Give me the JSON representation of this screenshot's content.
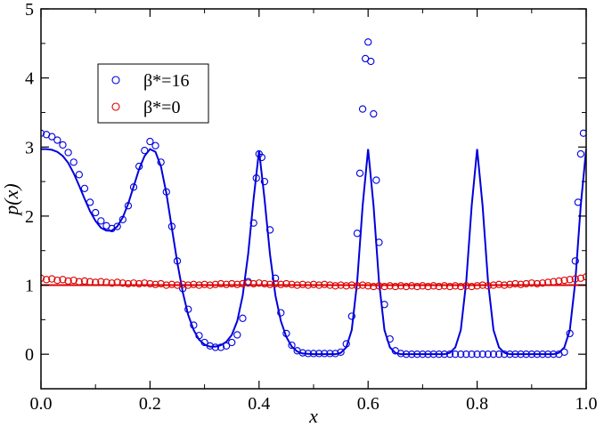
{
  "chart_data": {
    "type": "scatter",
    "xlabel": "x",
    "ylabel": "p(x)",
    "xlim": [
      0.0,
      1.0
    ],
    "ylim": [
      -0.5,
      5.0
    ],
    "x_ticks": [
      "0.0",
      "0.2",
      "0.4",
      "0.6",
      "0.8",
      "1.0"
    ],
    "y_ticks": [
      "0",
      "1",
      "2",
      "3",
      "4",
      "5"
    ],
    "legend_position": "upper-left",
    "series": [
      {
        "name": "β*=16",
        "kind": "markers",
        "marker": "open-circle",
        "color": "#0000dd",
        "points": [
          [
            0.0,
            3.2
          ],
          [
            0.01,
            3.18
          ],
          [
            0.02,
            3.15
          ],
          [
            0.03,
            3.1
          ],
          [
            0.04,
            3.03
          ],
          [
            0.05,
            2.92
          ],
          [
            0.06,
            2.78
          ],
          [
            0.07,
            2.6
          ],
          [
            0.08,
            2.4
          ],
          [
            0.09,
            2.2
          ],
          [
            0.1,
            2.05
          ],
          [
            0.11,
            1.93
          ],
          [
            0.12,
            1.86
          ],
          [
            0.13,
            1.82
          ],
          [
            0.14,
            1.85
          ],
          [
            0.15,
            1.95
          ],
          [
            0.16,
            2.15
          ],
          [
            0.17,
            2.42
          ],
          [
            0.18,
            2.72
          ],
          [
            0.19,
            2.95
          ],
          [
            0.2,
            3.08
          ],
          [
            0.21,
            3.02
          ],
          [
            0.22,
            2.78
          ],
          [
            0.23,
            2.35
          ],
          [
            0.24,
            1.85
          ],
          [
            0.25,
            1.35
          ],
          [
            0.26,
            0.95
          ],
          [
            0.27,
            0.65
          ],
          [
            0.28,
            0.42
          ],
          [
            0.29,
            0.27
          ],
          [
            0.3,
            0.17
          ],
          [
            0.31,
            0.12
          ],
          [
            0.32,
            0.1
          ],
          [
            0.33,
            0.1
          ],
          [
            0.34,
            0.12
          ],
          [
            0.35,
            0.17
          ],
          [
            0.36,
            0.28
          ],
          [
            0.37,
            0.52
          ],
          [
            0.38,
            1.05
          ],
          [
            0.39,
            1.9
          ],
          [
            0.395,
            2.55
          ],
          [
            0.4,
            2.9
          ],
          [
            0.405,
            2.85
          ],
          [
            0.41,
            2.5
          ],
          [
            0.42,
            1.8
          ],
          [
            0.43,
            1.1
          ],
          [
            0.44,
            0.6
          ],
          [
            0.45,
            0.3
          ],
          [
            0.46,
            0.13
          ],
          [
            0.47,
            0.05
          ],
          [
            0.48,
            0.02
          ],
          [
            0.49,
            0.01
          ],
          [
            0.5,
            0.01
          ],
          [
            0.51,
            0.01
          ],
          [
            0.52,
            0.01
          ],
          [
            0.53,
            0.01
          ],
          [
            0.54,
            0.01
          ],
          [
            0.55,
            0.03
          ],
          [
            0.56,
            0.15
          ],
          [
            0.57,
            0.55
          ],
          [
            0.58,
            1.75
          ],
          [
            0.585,
            2.62
          ],
          [
            0.59,
            3.55
          ],
          [
            0.595,
            4.28
          ],
          [
            0.6,
            4.52
          ],
          [
            0.605,
            4.24
          ],
          [
            0.61,
            3.48
          ],
          [
            0.615,
            2.52
          ],
          [
            0.62,
            1.62
          ],
          [
            0.63,
            0.72
          ],
          [
            0.64,
            0.22
          ],
          [
            0.65,
            0.05
          ],
          [
            0.66,
            0.01
          ],
          [
            0.67,
            0.0
          ],
          [
            0.68,
            0.0
          ],
          [
            0.69,
            0.0
          ],
          [
            0.7,
            0.0
          ],
          [
            0.71,
            0.0
          ],
          [
            0.72,
            0.0
          ],
          [
            0.73,
            0.0
          ],
          [
            0.74,
            0.0
          ],
          [
            0.75,
            0.0
          ],
          [
            0.76,
            0.0
          ],
          [
            0.77,
            0.0
          ],
          [
            0.78,
            0.0
          ],
          [
            0.79,
            0.0
          ],
          [
            0.8,
            0.0
          ],
          [
            0.81,
            0.0
          ],
          [
            0.82,
            0.0
          ],
          [
            0.83,
            0.0
          ],
          [
            0.84,
            0.0
          ],
          [
            0.85,
            0.0
          ],
          [
            0.86,
            0.0
          ],
          [
            0.87,
            0.0
          ],
          [
            0.88,
            0.0
          ],
          [
            0.89,
            0.0
          ],
          [
            0.9,
            0.0
          ],
          [
            0.91,
            0.0
          ],
          [
            0.92,
            0.0
          ],
          [
            0.93,
            0.0
          ],
          [
            0.94,
            0.0
          ],
          [
            0.95,
            0.0
          ],
          [
            0.96,
            0.03
          ],
          [
            0.97,
            0.3
          ],
          [
            0.98,
            1.35
          ],
          [
            0.985,
            2.2
          ],
          [
            0.99,
            2.9
          ],
          [
            0.995,
            3.2
          ]
        ]
      },
      {
        "name": "β*=0",
        "kind": "markers",
        "marker": "open-circle",
        "color": "#dd0000",
        "points": [
          [
            0.0,
            1.1
          ],
          [
            0.01,
            1.08
          ],
          [
            0.02,
            1.09
          ],
          [
            0.03,
            1.07
          ],
          [
            0.04,
            1.08
          ],
          [
            0.05,
            1.06
          ],
          [
            0.06,
            1.07
          ],
          [
            0.07,
            1.05
          ],
          [
            0.08,
            1.06
          ],
          [
            0.09,
            1.05
          ],
          [
            0.1,
            1.04
          ],
          [
            0.11,
            1.05
          ],
          [
            0.12,
            1.04
          ],
          [
            0.13,
            1.03
          ],
          [
            0.14,
            1.04
          ],
          [
            0.15,
            1.03
          ],
          [
            0.16,
            1.02
          ],
          [
            0.17,
            1.03
          ],
          [
            0.18,
            1.02
          ],
          [
            0.19,
            1.03
          ],
          [
            0.2,
            1.02
          ],
          [
            0.21,
            1.01
          ],
          [
            0.22,
            1.02
          ],
          [
            0.23,
            1.0
          ],
          [
            0.24,
            1.01
          ],
          [
            0.25,
            1.0
          ],
          [
            0.26,
            1.01
          ],
          [
            0.27,
            1.0
          ],
          [
            0.28,
            1.01
          ],
          [
            0.29,
            1.0
          ],
          [
            0.3,
            1.01
          ],
          [
            0.31,
            1.0
          ],
          [
            0.32,
            1.01
          ],
          [
            0.33,
            1.02
          ],
          [
            0.34,
            1.01
          ],
          [
            0.35,
            1.02
          ],
          [
            0.36,
            1.01
          ],
          [
            0.37,
            1.02
          ],
          [
            0.38,
            1.03
          ],
          [
            0.39,
            1.02
          ],
          [
            0.4,
            1.03
          ],
          [
            0.41,
            1.02
          ],
          [
            0.42,
            1.01
          ],
          [
            0.43,
            1.02
          ],
          [
            0.44,
            1.01
          ],
          [
            0.45,
            1.02
          ],
          [
            0.46,
            1.01
          ],
          [
            0.47,
            1.0
          ],
          [
            0.48,
            1.01
          ],
          [
            0.49,
            1.0
          ],
          [
            0.5,
            1.01
          ],
          [
            0.51,
            1.0
          ],
          [
            0.52,
            1.01
          ],
          [
            0.53,
            1.0
          ],
          [
            0.54,
            0.99
          ],
          [
            0.55,
            1.0
          ],
          [
            0.56,
            0.99
          ],
          [
            0.57,
            1.0
          ],
          [
            0.58,
            0.99
          ],
          [
            0.59,
            1.0
          ],
          [
            0.6,
            0.99
          ],
          [
            0.61,
            0.98
          ],
          [
            0.62,
            0.99
          ],
          [
            0.63,
            0.98
          ],
          [
            0.64,
            0.99
          ],
          [
            0.65,
            0.98
          ],
          [
            0.66,
            0.99
          ],
          [
            0.67,
            0.98
          ],
          [
            0.68,
            0.99
          ],
          [
            0.69,
            0.98
          ],
          [
            0.7,
            0.99
          ],
          [
            0.71,
            0.98
          ],
          [
            0.72,
            0.99
          ],
          [
            0.73,
            0.98
          ],
          [
            0.74,
            0.99
          ],
          [
            0.75,
            0.98
          ],
          [
            0.76,
            0.99
          ],
          [
            0.77,
            0.98
          ],
          [
            0.78,
            0.99
          ],
          [
            0.79,
            0.98
          ],
          [
            0.8,
            0.99
          ],
          [
            0.81,
            1.0
          ],
          [
            0.82,
            0.99
          ],
          [
            0.83,
            1.0
          ],
          [
            0.84,
            1.01
          ],
          [
            0.85,
            1.0
          ],
          [
            0.86,
            1.01
          ],
          [
            0.87,
            1.02
          ],
          [
            0.88,
            1.01
          ],
          [
            0.89,
            1.02
          ],
          [
            0.9,
            1.03
          ],
          [
            0.91,
            1.02
          ],
          [
            0.92,
            1.03
          ],
          [
            0.93,
            1.04
          ],
          [
            0.94,
            1.05
          ],
          [
            0.95,
            1.06
          ],
          [
            0.96,
            1.07
          ],
          [
            0.97,
            1.08
          ],
          [
            0.98,
            1.09
          ],
          [
            0.99,
            1.1
          ],
          [
            1.0,
            1.12
          ]
        ]
      },
      {
        "name": "",
        "kind": "line",
        "color": "#0000dd",
        "points": [
          [
            0.0,
            2.97
          ],
          [
            0.01,
            2.97
          ],
          [
            0.02,
            2.96
          ],
          [
            0.03,
            2.93
          ],
          [
            0.04,
            2.87
          ],
          [
            0.05,
            2.77
          ],
          [
            0.06,
            2.62
          ],
          [
            0.07,
            2.44
          ],
          [
            0.08,
            2.25
          ],
          [
            0.09,
            2.07
          ],
          [
            0.1,
            1.93
          ],
          [
            0.11,
            1.83
          ],
          [
            0.12,
            1.79
          ],
          [
            0.13,
            1.79
          ],
          [
            0.14,
            1.85
          ],
          [
            0.15,
            1.98
          ],
          [
            0.16,
            2.18
          ],
          [
            0.17,
            2.43
          ],
          [
            0.18,
            2.68
          ],
          [
            0.19,
            2.87
          ],
          [
            0.2,
            2.97
          ],
          [
            0.21,
            2.93
          ],
          [
            0.22,
            2.72
          ],
          [
            0.23,
            2.33
          ],
          [
            0.24,
            1.83
          ],
          [
            0.25,
            1.33
          ],
          [
            0.26,
            0.9
          ],
          [
            0.27,
            0.57
          ],
          [
            0.28,
            0.35
          ],
          [
            0.29,
            0.21
          ],
          [
            0.3,
            0.14
          ],
          [
            0.31,
            0.11
          ],
          [
            0.32,
            0.11
          ],
          [
            0.33,
            0.13
          ],
          [
            0.34,
            0.18
          ],
          [
            0.35,
            0.28
          ],
          [
            0.36,
            0.48
          ],
          [
            0.37,
            0.85
          ],
          [
            0.38,
            1.45
          ],
          [
            0.39,
            2.25
          ],
          [
            0.4,
            2.95
          ],
          [
            0.41,
            2.25
          ],
          [
            0.42,
            1.45
          ],
          [
            0.43,
            0.85
          ],
          [
            0.44,
            0.48
          ],
          [
            0.45,
            0.25
          ],
          [
            0.46,
            0.11
          ],
          [
            0.47,
            0.04
          ],
          [
            0.48,
            0.01
          ],
          [
            0.5,
            0.0
          ],
          [
            0.54,
            0.0
          ],
          [
            0.55,
            0.02
          ],
          [
            0.56,
            0.1
          ],
          [
            0.57,
            0.35
          ],
          [
            0.58,
            1.05
          ],
          [
            0.59,
            2.15
          ],
          [
            0.6,
            2.97
          ],
          [
            0.61,
            2.15
          ],
          [
            0.62,
            1.05
          ],
          [
            0.63,
            0.35
          ],
          [
            0.64,
            0.1
          ],
          [
            0.65,
            0.02
          ],
          [
            0.66,
            0.0
          ],
          [
            0.74,
            0.0
          ],
          [
            0.75,
            0.02
          ],
          [
            0.76,
            0.1
          ],
          [
            0.77,
            0.35
          ],
          [
            0.78,
            1.05
          ],
          [
            0.79,
            2.15
          ],
          [
            0.8,
            2.97
          ],
          [
            0.81,
            2.15
          ],
          [
            0.82,
            1.05
          ],
          [
            0.83,
            0.35
          ],
          [
            0.84,
            0.1
          ],
          [
            0.85,
            0.02
          ],
          [
            0.86,
            0.0
          ],
          [
            0.94,
            0.0
          ],
          [
            0.95,
            0.02
          ],
          [
            0.96,
            0.1
          ],
          [
            0.97,
            0.35
          ],
          [
            0.98,
            1.05
          ],
          [
            0.99,
            2.15
          ],
          [
            1.0,
            2.97
          ]
        ]
      },
      {
        "name": "",
        "kind": "line",
        "color": "#dd0000",
        "points": [
          [
            0.0,
            1.0
          ],
          [
            1.0,
            1.0
          ]
        ]
      }
    ]
  }
}
